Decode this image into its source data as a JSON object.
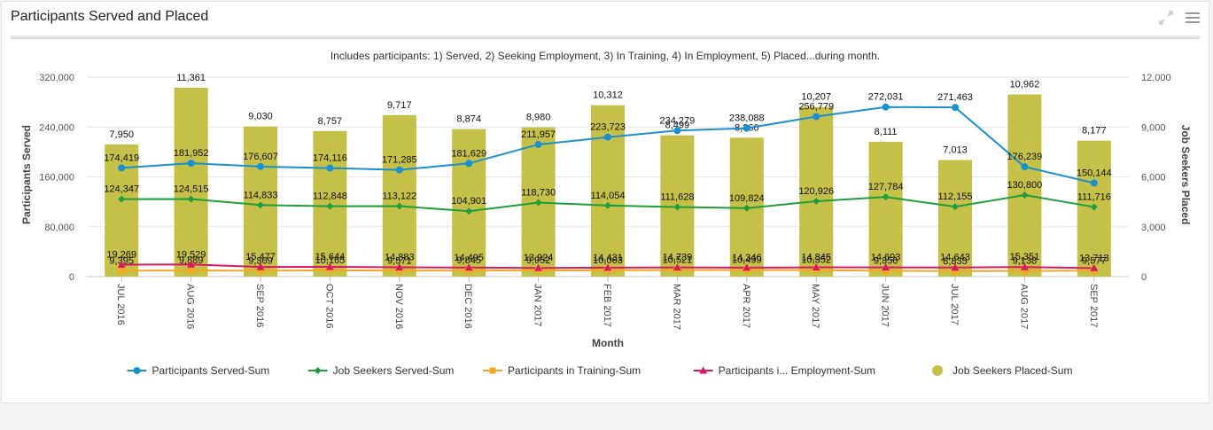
{
  "panel": {
    "title": "Participants Served and Placed",
    "icons": [
      "expand-icon",
      "hamburger-menu-icon"
    ]
  },
  "chart_data": {
    "type": "bar",
    "subtitle": "Includes participants: 1) Served, 2) Seeking Employment, 3) In Training, 4) In Employment, 5) Placed...during month.",
    "xlabel": "Month",
    "ylabel_left": "Participants Served",
    "ylabel_right": "Job Seekers Placed",
    "ylim_left": [
      0,
      320000
    ],
    "ylim_right": [
      0,
      12000
    ],
    "yticks_left": [
      "0",
      "80,000",
      "160,000",
      "240,000",
      "320,000"
    ],
    "yticks_right": [
      "0",
      "3,000",
      "6,000",
      "9,000",
      "12,000"
    ],
    "grid": true,
    "legend_position": "bottom",
    "categories": [
      "JUL 2016",
      "AUG 2016",
      "SEP 2016",
      "OCT 2016",
      "NOV 2016",
      "DEC 2016",
      "JAN 2017",
      "FEB 2017",
      "MAR 2017",
      "APR 2017",
      "MAY 2017",
      "JUN 2017",
      "JUL 2017",
      "AUG 2017",
      "SEP 2017"
    ],
    "series": [
      {
        "name": "Participants Served-Sum",
        "kind": "line",
        "axis": "left",
        "color": "#1a8fd1",
        "marker": "circle",
        "values": [
          174419,
          181952,
          176607,
          174116,
          171285,
          181629,
          211957,
          223723,
          234279,
          238088,
          256779,
          272031,
          271463,
          176239,
          150144
        ],
        "labels": [
          "174,419",
          "181,952",
          "176,607",
          "174,116",
          "171,285",
          "181,629",
          "211,957",
          "223,723",
          "234,279",
          "238,088",
          "256,779",
          "272,031",
          "271,463",
          "176,239",
          "150,144"
        ]
      },
      {
        "name": "Job Seekers Served-Sum",
        "kind": "line",
        "axis": "left",
        "color": "#1e9e3c",
        "marker": "diamond",
        "values": [
          124347,
          124515,
          114833,
          112848,
          113122,
          104901,
          118730,
          114054,
          111628,
          109824,
          120926,
          127784,
          112155,
          130800,
          111716
        ],
        "labels": [
          "124,347",
          "124,515",
          "114,833",
          "112,848",
          "113,122",
          "104,901",
          "118,730",
          "114,054",
          "111,628",
          "109,824",
          "120,926",
          "127,784",
          "112,155",
          "130,800",
          "111,716"
        ]
      },
      {
        "name": "Participants in Training-Sum",
        "kind": "line",
        "axis": "left",
        "color": "#f5a623",
        "marker": "square",
        "values": [
          9395,
          9889,
          9369,
          10165,
          9571,
          9845,
          9952,
          10063,
          10521,
          10499,
          10352,
          9356,
          8835,
          9138,
          9577
        ],
        "labels": [
          "9,395",
          "9,889",
          "9,369",
          "10,165",
          "9,571",
          "9,845",
          "9,952",
          "10,063",
          "10,521",
          "10,499",
          "10,352",
          "9,356",
          "8,835",
          "9,138",
          "9,577"
        ]
      },
      {
        "name": "Participants i... Employment-Sum",
        "kind": "line",
        "axis": "left",
        "color": "#d81b60",
        "marker": "triangle",
        "values": [
          19269,
          19529,
          15477,
          15644,
          14883,
          14495,
          13924,
          14431,
          14739,
          14346,
          14845,
          14693,
          14643,
          15351,
          13713
        ],
        "labels": [
          "19,269",
          "19,529",
          "15,477",
          "15,644",
          "14,883",
          "14,495",
          "13,924",
          "14,431",
          "14,739",
          "14,346",
          "14,845",
          "14,693",
          "14,643",
          "15,351",
          "13,713"
        ]
      },
      {
        "name": "Job Seekers Placed-Sum",
        "kind": "bar",
        "axis": "right",
        "color": "#c5c047",
        "values": [
          7950,
          11361,
          9030,
          8757,
          9717,
          8874,
          8980,
          10312,
          8499,
          8360,
          10207,
          8111,
          7013,
          10962,
          8177
        ],
        "labels": [
          "7,950",
          "11,361",
          "9,030",
          "8,757",
          "9,717",
          "8,874",
          "8,980",
          "10,312",
          "8,499",
          "8,360",
          "10,207",
          "8,111",
          "7,013",
          "10,962",
          "8,177"
        ]
      }
    ]
  }
}
